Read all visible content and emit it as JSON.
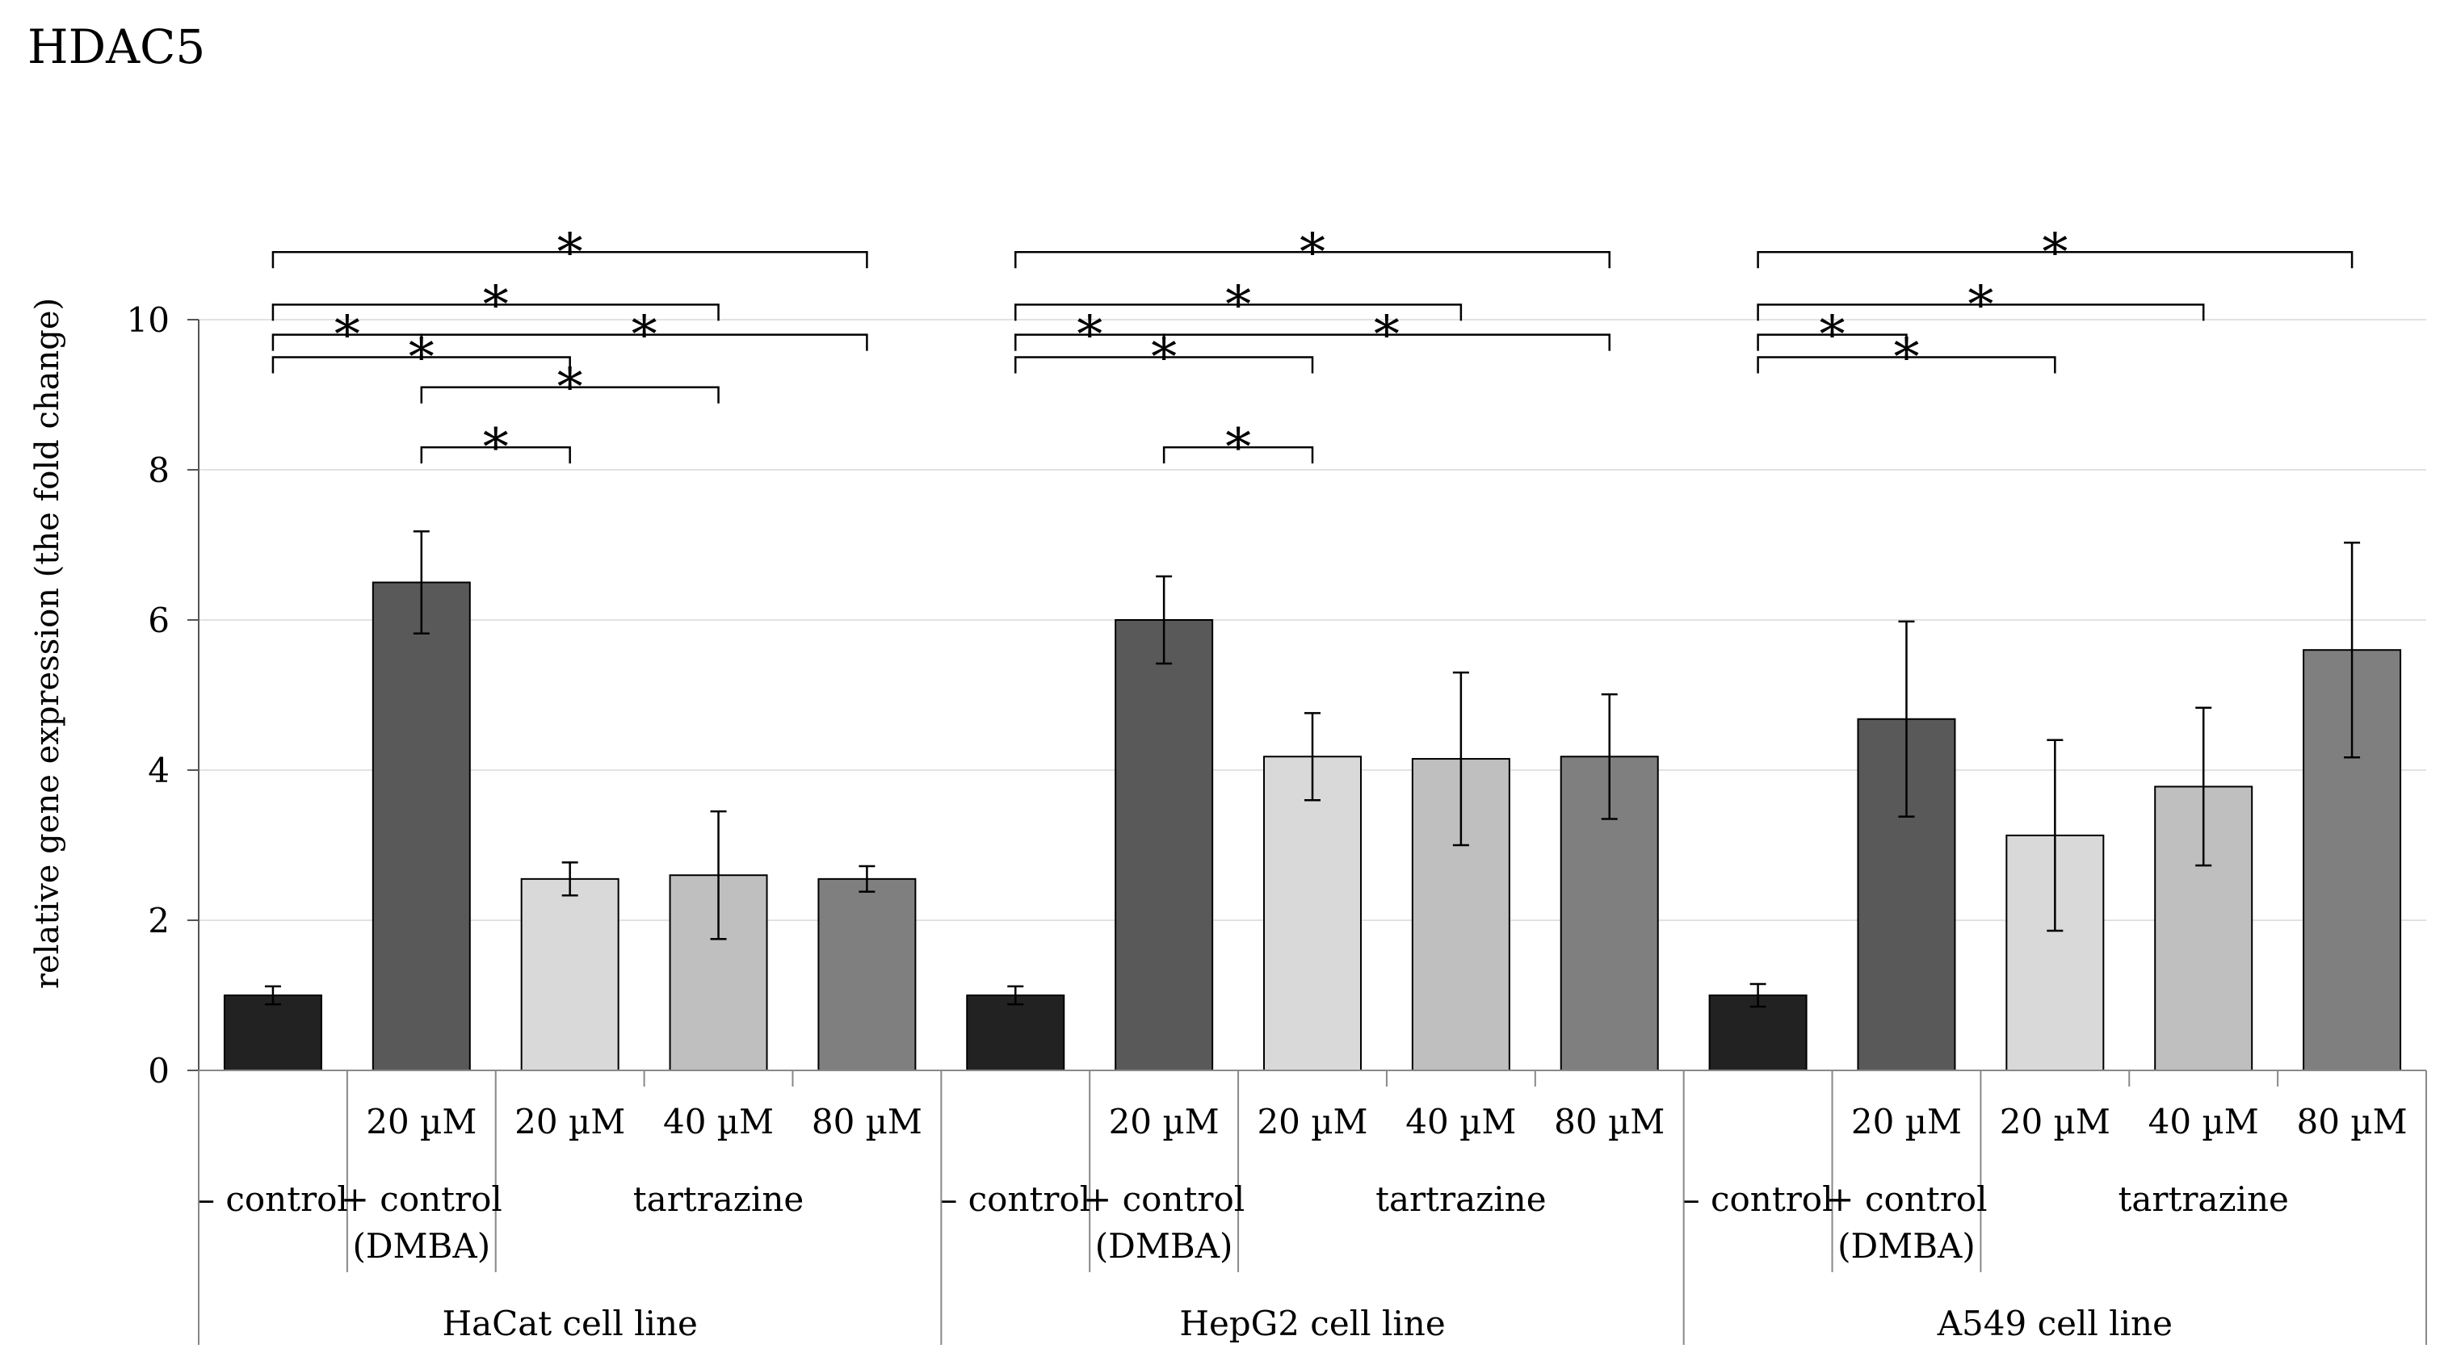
{
  "chart_data": {
    "type": "bar",
    "title": "HDAC5",
    "ylabel": "relative gene expression (the fold change)",
    "ylim": [
      0,
      10
    ],
    "yticks": [
      0,
      2,
      4,
      6,
      8,
      10
    ],
    "grid": true,
    "legend": "none",
    "groups": [
      {
        "label": "HaCat cell line",
        "bars": [
          {
            "value": 1.0,
            "error": 0.12,
            "color": "#222222"
          },
          {
            "value": 6.5,
            "error": 0.68,
            "color": "#595959"
          },
          {
            "value": 2.55,
            "error": 0.22,
            "color": "#d9d9d9"
          },
          {
            "value": 2.6,
            "error": 0.85,
            "color": "#bfbfbf"
          },
          {
            "value": 2.55,
            "error": 0.17,
            "color": "#7f7f7f"
          }
        ],
        "significance": [
          {
            "from": 0,
            "to": 4,
            "level": 10.9,
            "label": "*"
          },
          {
            "from": 0,
            "to": 3,
            "level": 10.2,
            "label": "*"
          },
          {
            "from": 0,
            "to": 2,
            "level": 9.5,
            "label": "*"
          },
          {
            "from": 0,
            "to": 1,
            "level": 9.8,
            "label": "*"
          },
          {
            "from": 1,
            "to": 4,
            "level": 9.8,
            "label": "*"
          },
          {
            "from": 1,
            "to": 3,
            "level": 9.1,
            "label": "*"
          },
          {
            "from": 1,
            "to": 2,
            "level": 8.3,
            "label": "*"
          }
        ]
      },
      {
        "label": "HepG2 cell line",
        "bars": [
          {
            "value": 1.0,
            "error": 0.12,
            "color": "#222222"
          },
          {
            "value": 6.0,
            "error": 0.58,
            "color": "#595959"
          },
          {
            "value": 4.18,
            "error": 0.58,
            "color": "#d9d9d9"
          },
          {
            "value": 4.15,
            "error": 1.15,
            "color": "#bfbfbf"
          },
          {
            "value": 4.18,
            "error": 0.83,
            "color": "#7f7f7f"
          }
        ],
        "significance": [
          {
            "from": 0,
            "to": 4,
            "level": 10.9,
            "label": "*"
          },
          {
            "from": 0,
            "to": 3,
            "level": 10.2,
            "label": "*"
          },
          {
            "from": 0,
            "to": 2,
            "level": 9.5,
            "label": "*"
          },
          {
            "from": 0,
            "to": 1,
            "level": 9.8,
            "label": "*"
          },
          {
            "from": 1,
            "to": 4,
            "level": 9.8,
            "label": "*"
          },
          {
            "from": 1,
            "to": 2,
            "level": 8.3,
            "label": "*"
          }
        ]
      },
      {
        "label": "A549 cell line",
        "bars": [
          {
            "value": 1.0,
            "error": 0.15,
            "color": "#222222"
          },
          {
            "value": 4.68,
            "error": 1.3,
            "color": "#595959"
          },
          {
            "value": 3.13,
            "error": 1.27,
            "color": "#d9d9d9"
          },
          {
            "value": 3.78,
            "error": 1.05,
            "color": "#bfbfbf"
          },
          {
            "value": 5.6,
            "error": 1.43,
            "color": "#7f7f7f"
          }
        ],
        "significance": [
          {
            "from": 0,
            "to": 4,
            "level": 10.9,
            "label": "*"
          },
          {
            "from": 0,
            "to": 3,
            "level": 10.2,
            "label": "*"
          },
          {
            "from": 0,
            "to": 2,
            "level": 9.5,
            "label": "*"
          },
          {
            "from": 0,
            "to": 1,
            "level": 9.8,
            "label": "*"
          }
        ]
      }
    ],
    "x_axis": {
      "bar_labels": [
        "",
        "20 µM",
        "20 µM",
        "40 µM",
        "80 µM"
      ],
      "category_labels": [
        {
          "text": "– control",
          "start": 0,
          "end": 0
        },
        {
          "text": "+ control",
          "text2": "(DMBA)",
          "start": 1,
          "end": 1
        },
        {
          "text": "tartrazine",
          "start": 2,
          "end": 4
        }
      ]
    }
  }
}
